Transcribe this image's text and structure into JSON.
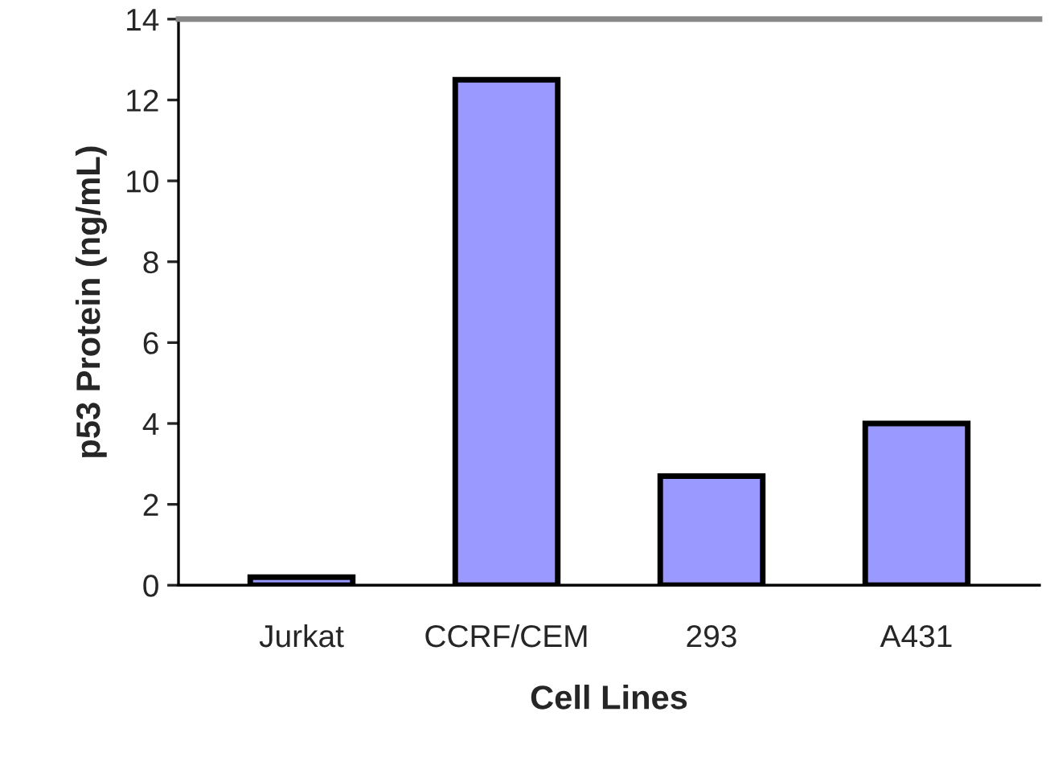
{
  "chart_data": {
    "type": "bar",
    "xlabel": "Cell Lines",
    "ylabel": "p53 Protein (ng/mL)",
    "categories": [
      "Jurkat",
      "CCRF/CEM",
      "293",
      "A431"
    ],
    "values": [
      0.2,
      12.5,
      2.7,
      4.0
    ],
    "color": "#9999ff",
    "ylim": [
      0,
      14
    ],
    "yticks": [
      0,
      2,
      4,
      6,
      8,
      10,
      12,
      14
    ],
    "grid": false,
    "legend": false
  }
}
